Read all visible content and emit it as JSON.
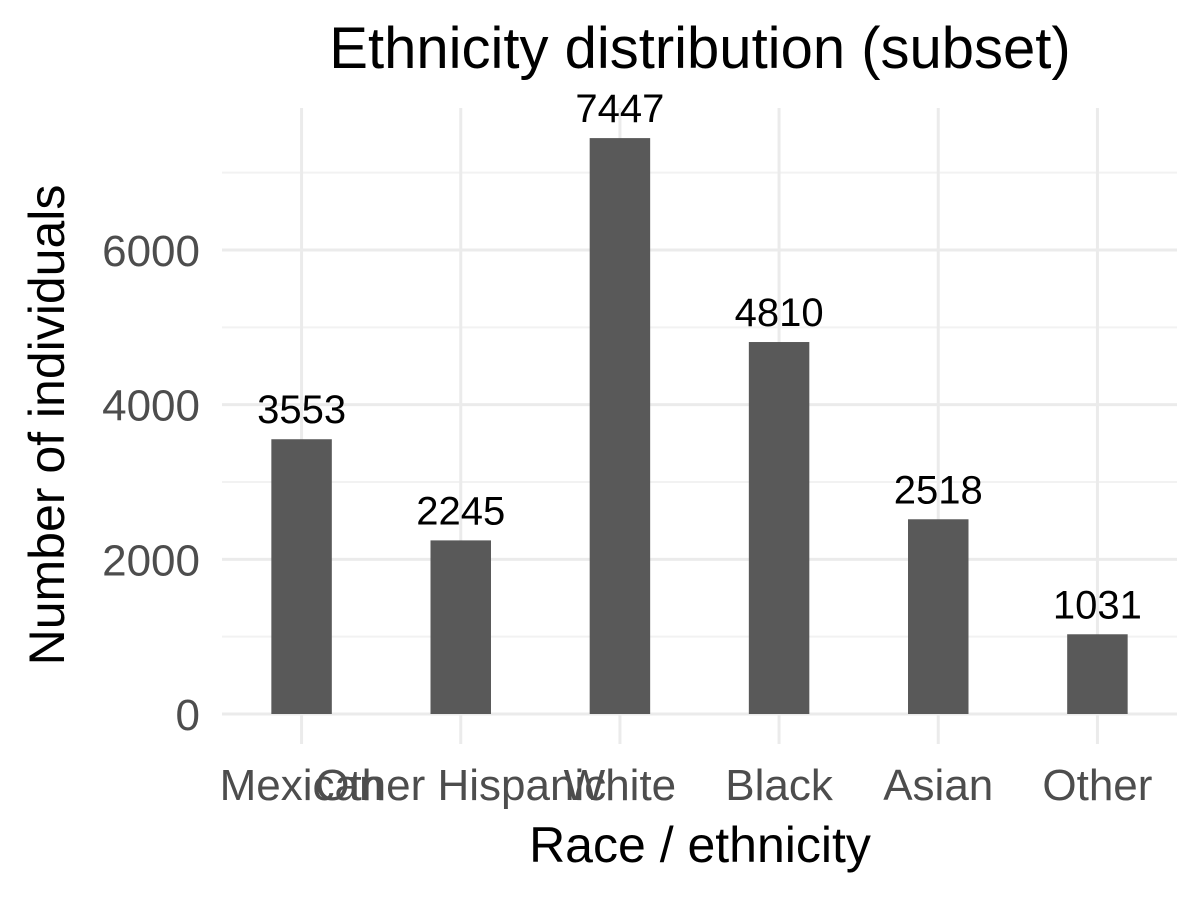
{
  "chart_data": {
    "type": "bar",
    "title": "Ethnicity distribution (subset)",
    "xlabel": "Race / ethnicity",
    "ylabel": "Number of individuals",
    "categories": [
      "Mexican",
      "Other Hispanic",
      "White",
      "Black",
      "Asian",
      "Other"
    ],
    "values": [
      3553,
      2245,
      7447,
      4810,
      2518,
      1031
    ],
    "y_ticks": [
      0,
      2000,
      4000,
      6000
    ],
    "ylim": [
      0,
      7447
    ],
    "grid": true,
    "legend": "none",
    "bar_color": "#595959",
    "data_labels": true
  }
}
